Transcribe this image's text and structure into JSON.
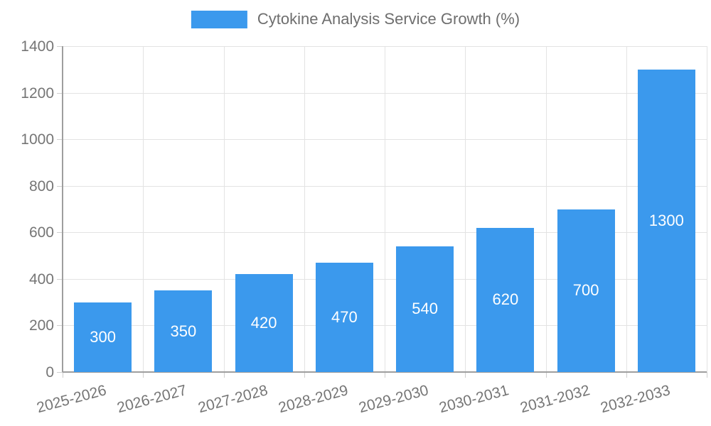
{
  "legend": {
    "label": "Cytokine Analysis Service Growth (%)"
  },
  "colors": {
    "bar": "#3B99ED",
    "grid": "#E3E3E3",
    "axis": "#9E9E9E",
    "tick": "#CFCFCF",
    "tick_text": "#757575",
    "legend_text": "#6E6E6E",
    "data_label_text": "#FFFFFF",
    "background": "#FFFFFF"
  },
  "chart_data": {
    "type": "bar",
    "title": "Cytokine Analysis Service Growth (%)",
    "categories": [
      "2025-2026",
      "2026-2027",
      "2027-2028",
      "2028-2029",
      "2029-2030",
      "2030-2031",
      "2031-2032",
      "2032-2033"
    ],
    "values": [
      300,
      350,
      420,
      470,
      540,
      620,
      700,
      1300
    ],
    "bar_value_labels": [
      "300",
      "350",
      "420",
      "470",
      "540",
      "620",
      "700",
      "1300"
    ],
    "xlabel": "",
    "ylabel": "",
    "ylim": [
      0,
      1400
    ],
    "ytick_step": 200,
    "ytick_labels": [
      "0",
      "200",
      "400",
      "600",
      "800",
      "1000",
      "1200",
      "1400"
    ],
    "grid": true,
    "legend_position": "top",
    "value_labels_inside_bars": true,
    "x_label_rotation_deg": -15
  }
}
